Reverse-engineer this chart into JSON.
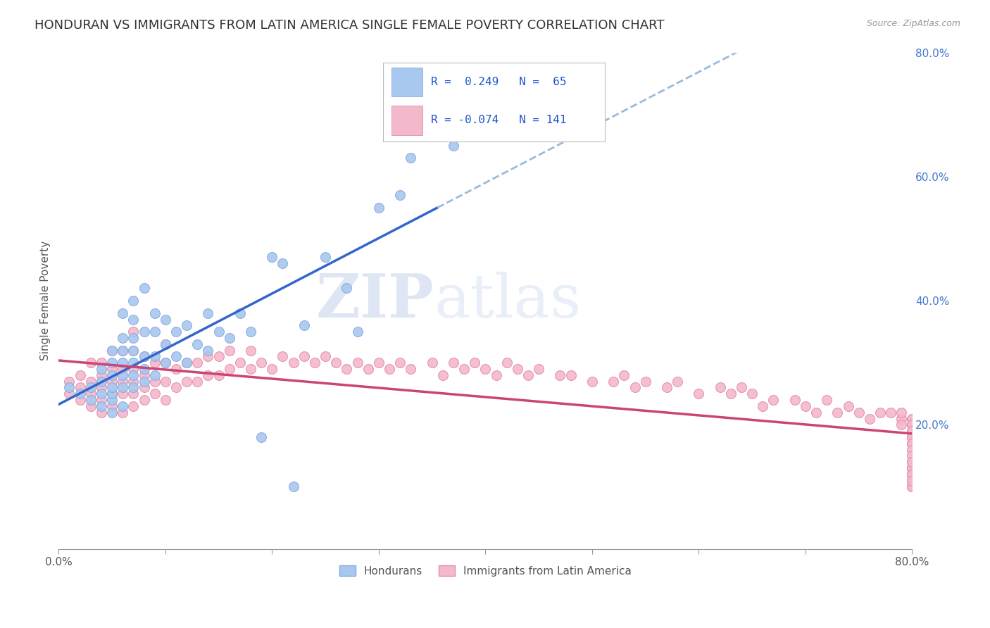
{
  "title": "HONDURAN VS IMMIGRANTS FROM LATIN AMERICA SINGLE FEMALE POVERTY CORRELATION CHART",
  "source": "Source: ZipAtlas.com",
  "ylabel": "Single Female Poverty",
  "xlim": [
    0.0,
    0.8
  ],
  "ylim": [
    0.0,
    0.8
  ],
  "hondurans_color": "#a8c8f0",
  "latam_color": "#f4b8cc",
  "hondurans_edge_color": "#88aadd",
  "latam_edge_color": "#e090a8",
  "trendline_honduran_color": "#3366cc",
  "trendline_latam_color": "#cc4477",
  "trendline_dashed_color": "#99bbdd",
  "R_honduran": 0.249,
  "N_honduran": 65,
  "R_latam": -0.074,
  "N_latam": 141,
  "legend_label_honduran": "Hondurans",
  "legend_label_latam": "Immigrants from Latin America",
  "watermark_zip": "ZIP",
  "watermark_atlas": "atlas",
  "background_color": "#ffffff",
  "grid_color": "#cccccc",
  "title_fontsize": 13,
  "axis_label_fontsize": 11,
  "tick_label_fontsize": 11,
  "right_tick_color": "#4477cc",
  "hondurans_x": [
    0.01,
    0.02,
    0.03,
    0.03,
    0.04,
    0.04,
    0.04,
    0.04,
    0.05,
    0.05,
    0.05,
    0.05,
    0.05,
    0.05,
    0.05,
    0.06,
    0.06,
    0.06,
    0.06,
    0.06,
    0.06,
    0.06,
    0.07,
    0.07,
    0.07,
    0.07,
    0.07,
    0.07,
    0.07,
    0.08,
    0.08,
    0.08,
    0.08,
    0.08,
    0.09,
    0.09,
    0.09,
    0.09,
    0.1,
    0.1,
    0.1,
    0.11,
    0.11,
    0.12,
    0.12,
    0.13,
    0.14,
    0.14,
    0.15,
    0.16,
    0.17,
    0.18,
    0.19,
    0.2,
    0.21,
    0.22,
    0.23,
    0.25,
    0.27,
    0.28,
    0.3,
    0.32,
    0.33,
    0.35,
    0.37
  ],
  "hondurans_y": [
    0.26,
    0.25,
    0.24,
    0.26,
    0.23,
    0.25,
    0.27,
    0.29,
    0.22,
    0.24,
    0.25,
    0.26,
    0.28,
    0.3,
    0.32,
    0.23,
    0.26,
    0.28,
    0.3,
    0.32,
    0.34,
    0.38,
    0.26,
    0.28,
    0.3,
    0.32,
    0.34,
    0.37,
    0.4,
    0.27,
    0.29,
    0.31,
    0.35,
    0.42,
    0.28,
    0.31,
    0.35,
    0.38,
    0.3,
    0.33,
    0.37,
    0.31,
    0.35,
    0.3,
    0.36,
    0.33,
    0.32,
    0.38,
    0.35,
    0.34,
    0.38,
    0.35,
    0.18,
    0.47,
    0.46,
    0.1,
    0.36,
    0.47,
    0.42,
    0.35,
    0.55,
    0.57,
    0.63,
    0.7,
    0.65
  ],
  "latam_x": [
    0.01,
    0.01,
    0.02,
    0.02,
    0.02,
    0.03,
    0.03,
    0.03,
    0.03,
    0.04,
    0.04,
    0.04,
    0.04,
    0.04,
    0.05,
    0.05,
    0.05,
    0.05,
    0.05,
    0.06,
    0.06,
    0.06,
    0.06,
    0.06,
    0.07,
    0.07,
    0.07,
    0.07,
    0.07,
    0.07,
    0.08,
    0.08,
    0.08,
    0.08,
    0.09,
    0.09,
    0.09,
    0.1,
    0.1,
    0.1,
    0.1,
    0.11,
    0.11,
    0.12,
    0.12,
    0.13,
    0.13,
    0.14,
    0.14,
    0.15,
    0.15,
    0.16,
    0.16,
    0.17,
    0.18,
    0.18,
    0.19,
    0.2,
    0.21,
    0.22,
    0.23,
    0.24,
    0.25,
    0.26,
    0.27,
    0.28,
    0.29,
    0.3,
    0.31,
    0.32,
    0.33,
    0.35,
    0.36,
    0.37,
    0.38,
    0.39,
    0.4,
    0.41,
    0.42,
    0.43,
    0.44,
    0.45,
    0.47,
    0.48,
    0.5,
    0.52,
    0.53,
    0.54,
    0.55,
    0.57,
    0.58,
    0.6,
    0.62,
    0.63,
    0.64,
    0.65,
    0.66,
    0.67,
    0.69,
    0.7,
    0.71,
    0.72,
    0.73,
    0.74,
    0.75,
    0.76,
    0.77,
    0.78,
    0.79,
    0.79,
    0.79,
    0.8,
    0.8,
    0.8,
    0.8,
    0.8,
    0.8,
    0.8,
    0.8,
    0.8,
    0.8,
    0.8,
    0.8,
    0.8,
    0.8,
    0.8,
    0.8,
    0.8,
    0.8,
    0.8,
    0.8,
    0.8,
    0.8,
    0.8,
    0.8,
    0.8,
    0.8,
    0.8,
    0.8,
    0.8,
    0.8
  ],
  "latam_y": [
    0.25,
    0.27,
    0.24,
    0.26,
    0.28,
    0.23,
    0.25,
    0.27,
    0.3,
    0.22,
    0.24,
    0.26,
    0.28,
    0.3,
    0.23,
    0.25,
    0.27,
    0.29,
    0.32,
    0.22,
    0.25,
    0.27,
    0.29,
    0.32,
    0.23,
    0.25,
    0.27,
    0.29,
    0.32,
    0.35,
    0.24,
    0.26,
    0.28,
    0.31,
    0.25,
    0.27,
    0.3,
    0.24,
    0.27,
    0.3,
    0.33,
    0.26,
    0.29,
    0.27,
    0.3,
    0.27,
    0.3,
    0.28,
    0.31,
    0.28,
    0.31,
    0.29,
    0.32,
    0.3,
    0.29,
    0.32,
    0.3,
    0.29,
    0.31,
    0.3,
    0.31,
    0.3,
    0.31,
    0.3,
    0.29,
    0.3,
    0.29,
    0.3,
    0.29,
    0.3,
    0.29,
    0.3,
    0.28,
    0.3,
    0.29,
    0.3,
    0.29,
    0.28,
    0.3,
    0.29,
    0.28,
    0.29,
    0.28,
    0.28,
    0.27,
    0.27,
    0.28,
    0.26,
    0.27,
    0.26,
    0.27,
    0.25,
    0.26,
    0.25,
    0.26,
    0.25,
    0.23,
    0.24,
    0.24,
    0.23,
    0.22,
    0.24,
    0.22,
    0.23,
    0.22,
    0.21,
    0.22,
    0.22,
    0.21,
    0.2,
    0.22,
    0.21,
    0.2,
    0.19,
    0.21,
    0.2,
    0.18,
    0.19,
    0.17,
    0.18,
    0.17,
    0.16,
    0.15,
    0.14,
    0.13,
    0.12,
    0.13,
    0.12,
    0.13,
    0.11,
    0.12,
    0.1,
    0.13,
    0.11,
    0.1,
    0.12,
    0.14,
    0.11,
    0.12,
    0.1,
    0.11
  ]
}
